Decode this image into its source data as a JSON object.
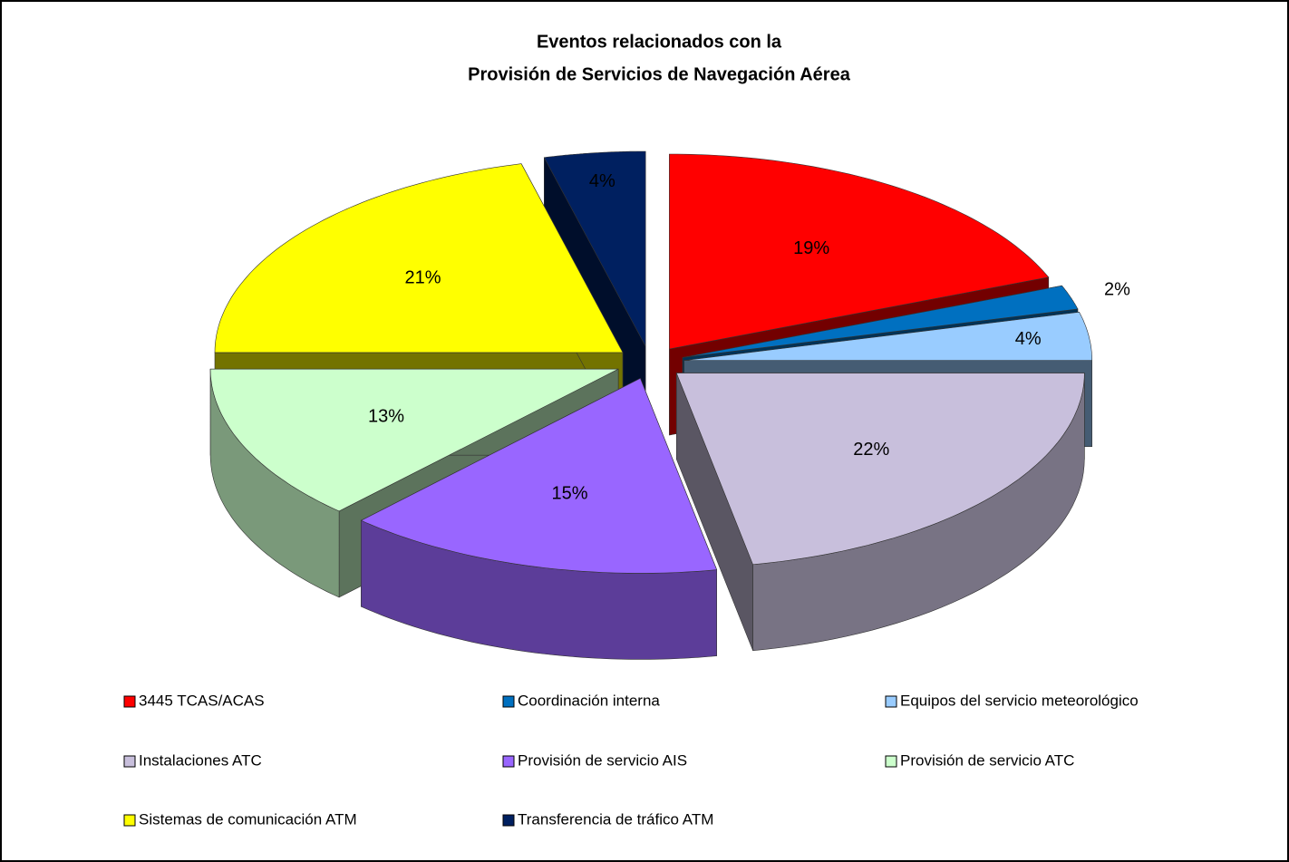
{
  "chart_data": {
    "type": "pie3d",
    "title": [
      "Eventos relacionados con la",
      "Provisión de Servicios de Navegación Aérea"
    ],
    "categories": [
      "3445 TCAS/ACAS",
      "Coordinación interna",
      "Equipos del servicio meteorológico",
      "Instalaciones ATC",
      "Provisión de servicio AIS",
      "Provisión de servicio ATC",
      "Sistemas de comunicación ATM",
      "Transferencia de tráfico ATM"
    ],
    "values": [
      19,
      2,
      4,
      22,
      15,
      13,
      21,
      4
    ],
    "value_labels": [
      "19%",
      "2%",
      "4%",
      "22%",
      "15%",
      "13%",
      "21%",
      "4%"
    ],
    "colors": [
      "#ff0000",
      "#0070c0",
      "#99ccff",
      "#c8bfdc",
      "#9966ff",
      "#ccffcc",
      "#ffff00",
      "#002060"
    ],
    "legend": "bottom"
  }
}
